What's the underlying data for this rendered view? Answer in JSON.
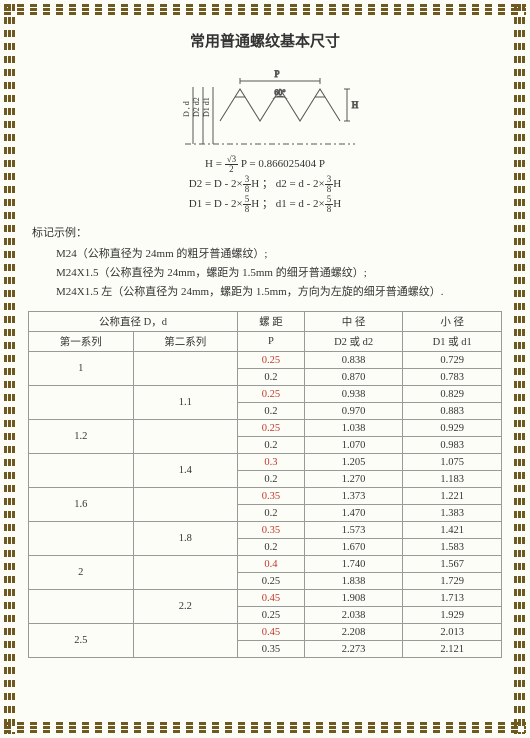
{
  "title": "常用普通螺纹基本尺寸",
  "diagram": {
    "labels": {
      "P": "P",
      "H": "H",
      "angle": "60°",
      "Dd": "D , d",
      "D2d2": "D2  d2",
      "D1d1": "D1  d1"
    },
    "stroke": "#555"
  },
  "formulas": {
    "line1_left": "H =",
    "line1_frac_n": "√3",
    "line1_frac_d": "2",
    "line1_right": "P = 0.866025404 P",
    "line2_a": "D2 = D - 2×",
    "line2_b": "H ；  d2 = d - 2×",
    "line2_c": "H",
    "frac38_n": "3",
    "frac38_d": "8",
    "line3_a": "D1 = D - 2×",
    "line3_b": "H ；  d1 = d - 2×",
    "line3_c": "H",
    "frac58_n": "5",
    "frac58_d": "8"
  },
  "notation": {
    "header": "标记示例：",
    "items": [
      "M24（公称直径为 24mm 的粗牙普通螺纹）;",
      "M24X1.5（公称直径为 24mm，螺距为 1.5mm 的细牙普通螺纹）;",
      "M24X1.5 左（公称直径为 24mm，螺距为 1.5mm，方向为左旋的细牙普通螺纹）."
    ]
  },
  "table": {
    "header": {
      "nominal": "公称直径 D，d",
      "series1": "第一系列",
      "series2": "第二系列",
      "pitch": "螺  距",
      "pitch_sub": "P",
      "mid": "中  径",
      "mid_sub": "D2 或 d2",
      "minor": "小  径",
      "minor_sub": "D1 或 d1"
    },
    "groups": [
      {
        "s1": "1",
        "s2": "",
        "rows": [
          {
            "p": "0.25",
            "red": true,
            "d2": "0.838",
            "d1": "0.729"
          },
          {
            "p": "0.2",
            "red": false,
            "d2": "0.870",
            "d1": "0.783"
          }
        ]
      },
      {
        "s1": "",
        "s2": "1.1",
        "rows": [
          {
            "p": "0.25",
            "red": true,
            "d2": "0.938",
            "d1": "0.829"
          },
          {
            "p": "0.2",
            "red": false,
            "d2": "0.970",
            "d1": "0.883"
          }
        ]
      },
      {
        "s1": "1.2",
        "s2": "",
        "rows": [
          {
            "p": "0.25",
            "red": true,
            "d2": "1.038",
            "d1": "0.929"
          },
          {
            "p": "0.2",
            "red": false,
            "d2": "1.070",
            "d1": "0.983"
          }
        ]
      },
      {
        "s1": "",
        "s2": "1.4",
        "rows": [
          {
            "p": "0.3",
            "red": true,
            "d2": "1.205",
            "d1": "1.075"
          },
          {
            "p": "0.2",
            "red": false,
            "d2": "1.270",
            "d1": "1.183"
          }
        ]
      },
      {
        "s1": "1.6",
        "s2": "",
        "rows": [
          {
            "p": "0.35",
            "red": true,
            "d2": "1.373",
            "d1": "1.221"
          },
          {
            "p": "0.2",
            "red": false,
            "d2": "1.470",
            "d1": "1.383"
          }
        ]
      },
      {
        "s1": "",
        "s2": "1.8",
        "rows": [
          {
            "p": "0.35",
            "red": true,
            "d2": "1.573",
            "d1": "1.421"
          },
          {
            "p": "0.2",
            "red": false,
            "d2": "1.670",
            "d1": "1.583"
          }
        ]
      },
      {
        "s1": "2",
        "s2": "",
        "rows": [
          {
            "p": "0.4",
            "red": true,
            "d2": "1.740",
            "d1": "1.567"
          },
          {
            "p": "0.25",
            "red": false,
            "d2": "1.838",
            "d1": "1.729"
          }
        ]
      },
      {
        "s1": "",
        "s2": "2.2",
        "rows": [
          {
            "p": "0.45",
            "red": true,
            "d2": "1.908",
            "d1": "1.713"
          },
          {
            "p": "0.25",
            "red": false,
            "d2": "2.038",
            "d1": "1.929"
          }
        ]
      },
      {
        "s1": "2.5",
        "s2": "",
        "rows": [
          {
            "p": "0.45",
            "red": true,
            "d2": "2.208",
            "d1": "2.013"
          },
          {
            "p": "0.35",
            "red": false,
            "d2": "2.273",
            "d1": "2.121"
          }
        ]
      }
    ]
  }
}
